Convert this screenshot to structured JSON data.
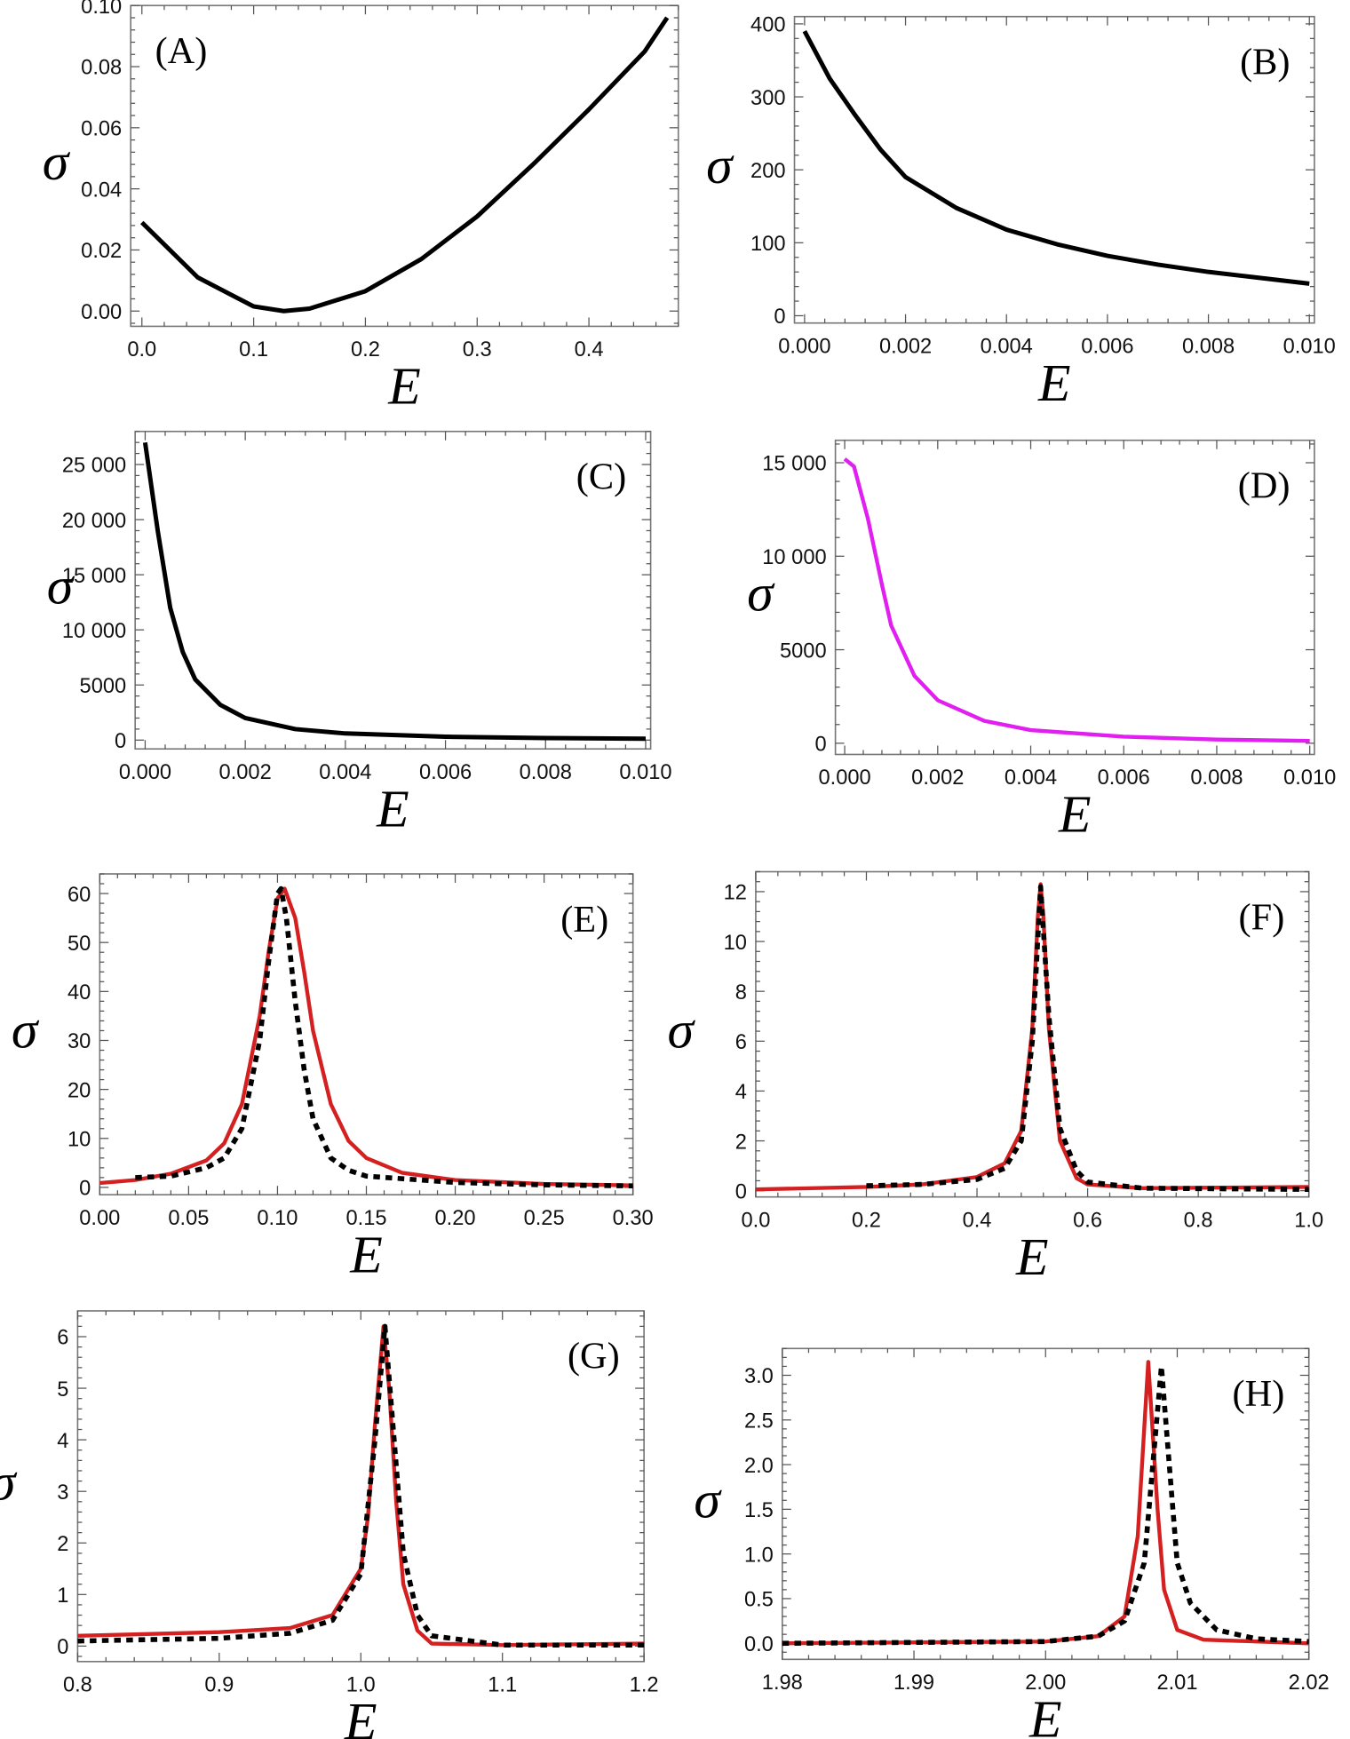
{
  "colors": {
    "black": "#000000",
    "red": "#d42020",
    "magenta": "#e01ff0"
  },
  "chart_data": [
    {
      "panel": "(A)",
      "type": "line",
      "xlabel": "E",
      "ylabel": "σ",
      "xlim": [
        -0.01,
        0.48
      ],
      "ylim": [
        -0.005,
        0.1
      ],
      "xticks": [
        0.0,
        0.1,
        0.2,
        0.3,
        0.4
      ],
      "xtick_labels": [
        "0.0",
        "0.1",
        "0.2",
        "0.3",
        "0.4"
      ],
      "yticks": [
        0,
        0.02,
        0.04,
        0.06,
        0.08,
        0.1
      ],
      "ytick_labels": [
        "0.00",
        "0.02",
        "0.04",
        "0.06",
        "0.08",
        "0.10"
      ],
      "label_position": "top-left",
      "series": [
        {
          "style": "solid",
          "color": "black",
          "x": [
            0,
            0.05,
            0.1,
            0.127,
            0.15,
            0.2,
            0.25,
            0.3,
            0.35,
            0.4,
            0.45,
            0.47
          ],
          "y": [
            0.029,
            0.011,
            0.0015,
            0,
            0.0008,
            0.0065,
            0.017,
            0.031,
            0.048,
            0.066,
            0.085,
            0.096
          ]
        }
      ]
    },
    {
      "panel": "(B)",
      "type": "line",
      "xlabel": "E",
      "ylabel": "σ",
      "xlim": [
        -0.0002,
        0.0101
      ],
      "ylim": [
        -10,
        410
      ],
      "xticks": [
        0,
        0.002,
        0.004,
        0.006,
        0.008,
        0.01
      ],
      "xtick_labels": [
        "0.000",
        "0.002",
        "0.004",
        "0.006",
        "0.008",
        "0.010"
      ],
      "yticks": [
        0,
        100,
        200,
        300,
        400
      ],
      "ytick_labels": [
        "0",
        "100",
        "200",
        "300",
        "400"
      ],
      "label_position": "top-right",
      "series": [
        {
          "style": "solid",
          "color": "black",
          "x": [
            0,
            0.0005,
            0.001,
            0.0015,
            0.002,
            0.003,
            0.004,
            0.005,
            0.006,
            0.007,
            0.008,
            0.009,
            0.01
          ],
          "y": [
            390,
            325,
            275,
            228,
            190,
            148,
            118,
            98,
            82,
            70,
            60,
            52,
            44
          ]
        }
      ]
    },
    {
      "panel": "(C)",
      "type": "line",
      "xlabel": "E",
      "ylabel": "σ",
      "xlim": [
        -0.0002,
        0.0101
      ],
      "ylim": [
        -800,
        28000
      ],
      "xticks": [
        0,
        0.002,
        0.004,
        0.006,
        0.008,
        0.01
      ],
      "xtick_labels": [
        "0.000",
        "0.002",
        "0.004",
        "0.006",
        "0.008",
        "0.010"
      ],
      "yticks": [
        0,
        5000,
        10000,
        15000,
        20000,
        25000
      ],
      "ytick_labels": [
        "0",
        "5000",
        "10 000",
        "15 000",
        "20 000",
        "25 000"
      ],
      "label_position": "top-right",
      "series": [
        {
          "style": "solid",
          "color": "black",
          "x": [
            0,
            0.00025,
            0.0005,
            0.00075,
            0.001,
            0.0015,
            0.002,
            0.003,
            0.004,
            0.006,
            0.008,
            0.01
          ],
          "y": [
            27000,
            19000,
            12000,
            8000,
            5500,
            3200,
            2000,
            1000,
            600,
            300,
            180,
            120
          ]
        }
      ]
    },
    {
      "panel": "(D)",
      "type": "line",
      "xlabel": "E",
      "ylabel": "σ",
      "xlim": [
        -0.0002,
        0.0101
      ],
      "ylim": [
        -600,
        16200
      ],
      "xticks": [
        0,
        0.002,
        0.004,
        0.006,
        0.008,
        0.01
      ],
      "xtick_labels": [
        "0.000",
        "0.002",
        "0.004",
        "0.006",
        "0.008",
        "0.010"
      ],
      "yticks": [
        0,
        5000,
        10000,
        15000
      ],
      "ytick_labels": [
        "0",
        "5000",
        "10 000",
        "15 000"
      ],
      "label_position": "top-right",
      "series": [
        {
          "style": "solid",
          "color": "magenta",
          "x": [
            0,
            0.0002,
            0.0005,
            0.0008,
            0.001,
            0.0015,
            0.002,
            0.003,
            0.004,
            0.006,
            0.008,
            0.01
          ],
          "y": [
            15200,
            14800,
            12000,
            8500,
            6300,
            3600,
            2300,
            1200,
            700,
            350,
            200,
            130
          ]
        }
      ]
    },
    {
      "panel": "(E)",
      "type": "line",
      "xlabel": "E",
      "ylabel": "σ",
      "xlim": [
        0,
        0.3
      ],
      "ylim": [
        -1.5,
        64
      ],
      "xticks": [
        0,
        0.05,
        0.1,
        0.15,
        0.2,
        0.25,
        0.3
      ],
      "xtick_labels": [
        "0.00",
        "0.05",
        "0.10",
        "0.15",
        "0.20",
        "0.25",
        "0.30"
      ],
      "yticks": [
        0,
        10,
        20,
        30,
        40,
        50,
        60
      ],
      "ytick_labels": [
        "0",
        "10",
        "20",
        "30",
        "40",
        "50",
        "60"
      ],
      "label_position": "top-right",
      "series": [
        {
          "style": "solid",
          "color": "red",
          "x": [
            0,
            0.02,
            0.04,
            0.06,
            0.07,
            0.08,
            0.09,
            0.095,
            0.1,
            0.104,
            0.11,
            0.115,
            0.12,
            0.13,
            0.14,
            0.15,
            0.17,
            0.2,
            0.25,
            0.3
          ],
          "y": [
            0.9,
            1.5,
            2.8,
            5.5,
            9,
            17,
            35,
            48,
            59,
            61,
            55,
            44,
            32,
            17,
            9.5,
            6,
            3,
            1.5,
            0.7,
            0.4
          ]
        },
        {
          "style": "dashed",
          "color": "black",
          "x": [
            0.02,
            0.04,
            0.06,
            0.07,
            0.08,
            0.09,
            0.095,
            0.1,
            0.102,
            0.105,
            0.11,
            0.115,
            0.12,
            0.13,
            0.14,
            0.15,
            0.2,
            0.25,
            0.3
          ],
          "y": [
            2,
            2.3,
            4,
            6,
            12,
            30,
            46,
            60,
            61,
            55,
            38,
            24,
            14,
            6,
            3.5,
            2.3,
            1,
            0.5,
            0.3
          ]
        }
      ]
    },
    {
      "panel": "(F)",
      "type": "line",
      "xlabel": "E",
      "ylabel": "σ",
      "xlim": [
        0,
        1
      ],
      "ylim": [
        -0.25,
        12.8
      ],
      "xticks": [
        0,
        0.2,
        0.4,
        0.6,
        0.8,
        1
      ],
      "xtick_labels": [
        "0.0",
        "0.2",
        "0.4",
        "0.6",
        "0.8",
        "1.0"
      ],
      "yticks": [
        0,
        2,
        4,
        6,
        8,
        10,
        12
      ],
      "ytick_labels": [
        "0",
        "2",
        "4",
        "6",
        "8",
        "10",
        "12"
      ],
      "label_position": "top-right",
      "series": [
        {
          "style": "solid",
          "color": "red",
          "x": [
            0,
            0.2,
            0.3,
            0.4,
            0.45,
            0.48,
            0.5,
            0.51,
            0.515,
            0.52,
            0.53,
            0.55,
            0.58,
            0.6,
            0.7,
            0.8,
            1
          ],
          "y": [
            0.05,
            0.15,
            0.25,
            0.55,
            1.1,
            2.4,
            6.5,
            11,
            12.3,
            11,
            6.5,
            2,
            0.5,
            0.25,
            0.1,
            0.12,
            0.15
          ]
        },
        {
          "style": "dashed",
          "color": "black",
          "x": [
            0.2,
            0.3,
            0.4,
            0.45,
            0.48,
            0.5,
            0.515,
            0.53,
            0.55,
            0.58,
            0.6,
            0.7,
            1
          ],
          "y": [
            0.2,
            0.25,
            0.45,
            0.9,
            2,
            6,
            12.2,
            7,
            2.5,
            0.8,
            0.35,
            0.1,
            0.05
          ]
        }
      ]
    },
    {
      "panel": "(G)",
      "type": "line",
      "xlabel": "E",
      "ylabel": "σ",
      "xlim": [
        0.8,
        1.2
      ],
      "ylim": [
        -0.3,
        6.5
      ],
      "xticks": [
        0.8,
        0.9,
        1.0,
        1.1,
        1.2
      ],
      "xtick_labels": [
        "0.8",
        "0.9",
        "1.0",
        "1.1",
        "1.2"
      ],
      "yticks": [
        0,
        1,
        2,
        3,
        4,
        5,
        6
      ],
      "ytick_labels": [
        "0",
        "1",
        "2",
        "3",
        "4",
        "5",
        "6"
      ],
      "label_position": "top-right",
      "series": [
        {
          "style": "solid",
          "color": "red",
          "x": [
            0.8,
            0.9,
            0.95,
            0.98,
            1.0,
            1.005,
            1.01,
            1.016,
            1.02,
            1.025,
            1.03,
            1.04,
            1.05,
            1.1,
            1.2
          ],
          "y": [
            0.2,
            0.27,
            0.35,
            0.6,
            1.5,
            2.5,
            4.3,
            6.2,
            5,
            2.8,
            1.2,
            0.3,
            0.05,
            0.02,
            0.05
          ]
        },
        {
          "style": "dashed",
          "color": "black",
          "x": [
            0.8,
            0.9,
            0.95,
            0.98,
            1.0,
            1.01,
            1.017,
            1.025,
            1.03,
            1.04,
            1.05,
            1.1,
            1.2
          ],
          "y": [
            0.1,
            0.15,
            0.25,
            0.5,
            1.4,
            4,
            6.2,
            3.5,
            1.8,
            0.6,
            0.2,
            0.02,
            0.02
          ]
        }
      ]
    },
    {
      "panel": "(H)",
      "type": "line",
      "xlabel": "E",
      "ylabel": "σ",
      "xlim": [
        1.98,
        2.02
      ],
      "ylim": [
        -0.18,
        3.3
      ],
      "xticks": [
        1.98,
        1.99,
        2.0,
        2.01,
        2.02
      ],
      "xtick_labels": [
        "1.98",
        "1.99",
        "2.00",
        "2.01",
        "2.02"
      ],
      "yticks": [
        0,
        0.5,
        1,
        1.5,
        2,
        2.5,
        3
      ],
      "ytick_labels": [
        "0.0",
        "0.5",
        "1.0",
        "1.5",
        "2.0",
        "2.5",
        "3.0"
      ],
      "label_position": "top-right",
      "series": [
        {
          "style": "solid",
          "color": "red",
          "x": [
            1.98,
            2.0,
            2.004,
            2.006,
            2.007,
            2.0078,
            2.0085,
            2.009,
            2.01,
            2.012,
            2.02
          ],
          "y": [
            0,
            0.02,
            0.08,
            0.3,
            1.2,
            3.15,
            1.5,
            0.6,
            0.15,
            0.04,
            0
          ]
        },
        {
          "style": "dashed",
          "color": "black",
          "x": [
            1.98,
            2.0,
            2.004,
            2.006,
            2.0075,
            2.0088,
            2.0095,
            2.01,
            2.011,
            2.013,
            2.016,
            2.02
          ],
          "y": [
            0,
            0.02,
            0.08,
            0.25,
            0.9,
            3.1,
            1.8,
            0.9,
            0.45,
            0.15,
            0.05,
            0.02
          ]
        }
      ]
    }
  ]
}
